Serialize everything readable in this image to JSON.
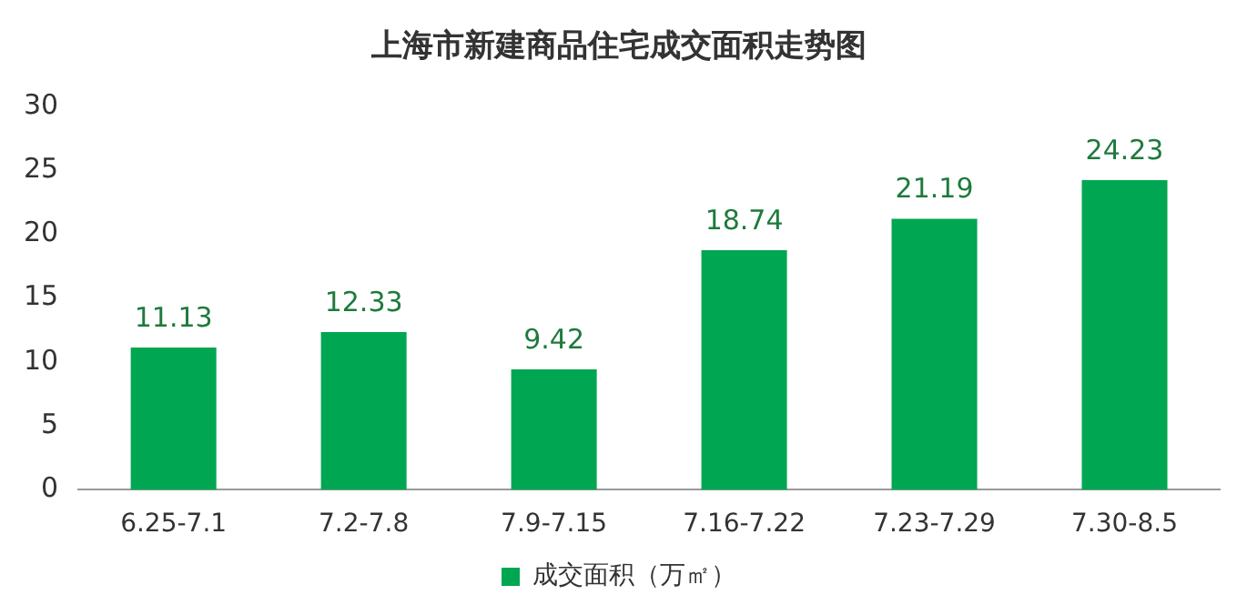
{
  "chart_data": {
    "type": "bar",
    "title": "上海市新建商品住宅成交面积走势图",
    "categories": [
      "6.25-7.1",
      "7.2-7.8",
      "7.9-7.15",
      "7.16-7.22",
      "7.23-7.29",
      "7.30-8.5"
    ],
    "series": [
      {
        "name": "成交面积（万㎡）",
        "color": "#00a651",
        "values": [
          11.13,
          12.33,
          9.42,
          18.74,
          21.19,
          24.23
        ]
      }
    ],
    "ylim": [
      0,
      30
    ],
    "yticks": [
      0,
      5,
      10,
      15,
      20,
      25,
      30
    ],
    "grid": false,
    "legend": "bottom",
    "data_labels": true
  }
}
